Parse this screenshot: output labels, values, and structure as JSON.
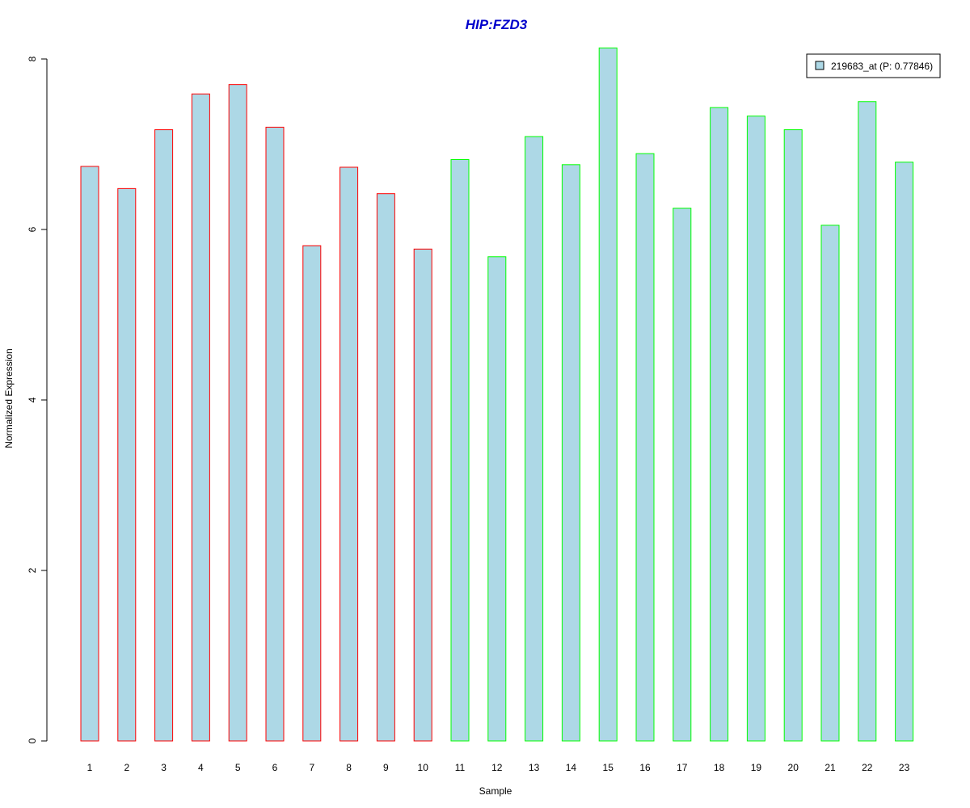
{
  "chart_data": {
    "type": "bar",
    "title": "HIP:FZD3",
    "xlabel": "Sample",
    "ylabel": "Normalized Expression",
    "categories": [
      "1",
      "2",
      "3",
      "4",
      "5",
      "6",
      "7",
      "8",
      "9",
      "10",
      "11",
      "12",
      "13",
      "14",
      "15",
      "16",
      "17",
      "18",
      "19",
      "20",
      "21",
      "22",
      "23"
    ],
    "series": [
      {
        "name": "219683_at (P: 0.77846)",
        "values": [
          6.74,
          6.48,
          7.17,
          7.59,
          7.7,
          7.2,
          5.81,
          6.73,
          6.42,
          5.77,
          6.82,
          5.68,
          7.09,
          6.76,
          8.13,
          6.89,
          6.25,
          7.43,
          7.33,
          7.17,
          6.05,
          7.5,
          6.79
        ],
        "fill": "#ADD8E6"
      }
    ],
    "bar_outline_colors": [
      "#FF0000",
      "#FF0000",
      "#FF0000",
      "#FF0000",
      "#FF0000",
      "#FF0000",
      "#FF0000",
      "#FF0000",
      "#FF0000",
      "#FF0000",
      "#00FF00",
      "#00FF00",
      "#00FF00",
      "#00FF00",
      "#00FF00",
      "#00FF00",
      "#00FF00",
      "#00FF00",
      "#00FF00",
      "#00FF00",
      "#00FF00",
      "#00FF00",
      "#00FF00"
    ],
    "yticks": [
      "0",
      "2",
      "4",
      "6",
      "8"
    ],
    "ylim": [
      0,
      8
    ],
    "grid": false,
    "legend_position": "top-right",
    "title_color": "#0000CC"
  }
}
